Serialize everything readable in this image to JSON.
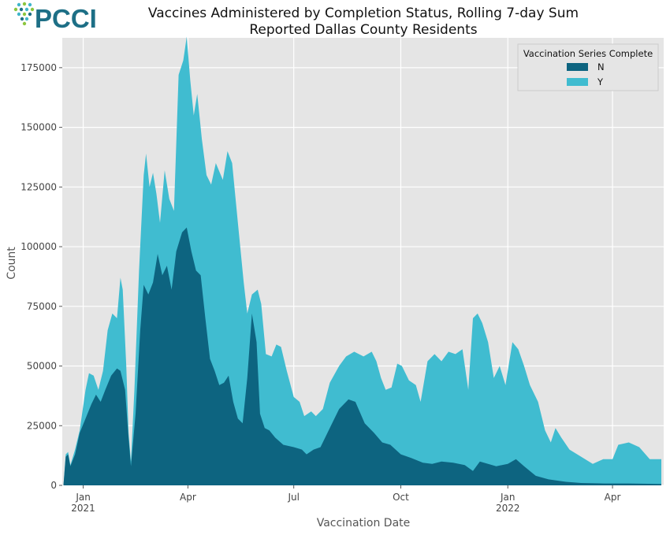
{
  "logo": {
    "text": "PCCI"
  },
  "chart_data": {
    "type": "area",
    "stacked": true,
    "title": "Vaccines Administered by Completion Status, Rolling 7-day Sum",
    "subtitle": "Reported Dallas County Residents",
    "xlabel": "Vaccination Date",
    "ylabel": "Count",
    "ylim": [
      0,
      187500
    ],
    "xlim": [
      "2020-12-14",
      "2022-05-15"
    ],
    "yticks": [
      0,
      25000,
      50000,
      75000,
      100000,
      125000,
      150000,
      175000
    ],
    "yticklabels": [
      "0",
      "25000",
      "50000",
      "75000",
      "100000",
      "125000",
      "150000",
      "175000"
    ],
    "xticks": [
      {
        "date": "2021-01-01",
        "label": "Jan",
        "year": "2021"
      },
      {
        "date": "2021-04-01",
        "label": "Apr",
        "year": ""
      },
      {
        "date": "2021-07-01",
        "label": "Jul",
        "year": ""
      },
      {
        "date": "2021-10-01",
        "label": "Oct",
        "year": ""
      },
      {
        "date": "2022-01-01",
        "label": "Jan",
        "year": "2022"
      },
      {
        "date": "2022-04-01",
        "label": "Apr",
        "year": ""
      }
    ],
    "grid": true,
    "legend": {
      "title": "Vaccination Series Complete",
      "position": "top-right"
    },
    "series": [
      {
        "name": "N",
        "color": "#0d6480",
        "points": [
          [
            "2020-12-15",
            0
          ],
          [
            "2020-12-17",
            12000
          ],
          [
            "2020-12-19",
            13000
          ],
          [
            "2020-12-21",
            8000
          ],
          [
            "2020-12-25",
            13000
          ],
          [
            "2020-12-29",
            22000
          ],
          [
            "2021-01-03",
            28000
          ],
          [
            "2021-01-08",
            34000
          ],
          [
            "2021-01-12",
            38000
          ],
          [
            "2021-01-16",
            35000
          ],
          [
            "2021-01-20",
            40000
          ],
          [
            "2021-01-25",
            46000
          ],
          [
            "2021-01-30",
            49000
          ],
          [
            "2021-02-02",
            48000
          ],
          [
            "2021-02-06",
            40000
          ],
          [
            "2021-02-09",
            20000
          ],
          [
            "2021-02-11",
            8000
          ],
          [
            "2021-02-15",
            30000
          ],
          [
            "2021-02-19",
            65000
          ],
          [
            "2021-02-22",
            84000
          ],
          [
            "2021-02-26",
            80000
          ],
          [
            "2021-03-02",
            85000
          ],
          [
            "2021-03-06",
            97000
          ],
          [
            "2021-03-10",
            88000
          ],
          [
            "2021-03-14",
            92000
          ],
          [
            "2021-03-18",
            82000
          ],
          [
            "2021-03-22",
            98000
          ],
          [
            "2021-03-27",
            106000
          ],
          [
            "2021-03-31",
            108000
          ],
          [
            "2021-04-04",
            98000
          ],
          [
            "2021-04-08",
            90000
          ],
          [
            "2021-04-12",
            88000
          ],
          [
            "2021-04-16",
            70000
          ],
          [
            "2021-04-20",
            53000
          ],
          [
            "2021-04-24",
            48000
          ],
          [
            "2021-04-28",
            42000
          ],
          [
            "2021-05-02",
            43000
          ],
          [
            "2021-05-06",
            46000
          ],
          [
            "2021-05-10",
            35000
          ],
          [
            "2021-05-14",
            28000
          ],
          [
            "2021-05-18",
            26000
          ],
          [
            "2021-05-22",
            45000
          ],
          [
            "2021-05-26",
            72000
          ],
          [
            "2021-05-30",
            60000
          ],
          [
            "2021-06-02",
            30000
          ],
          [
            "2021-06-06",
            24000
          ],
          [
            "2021-06-10",
            23000
          ],
          [
            "2021-06-15",
            20000
          ],
          [
            "2021-06-22",
            17000
          ],
          [
            "2021-07-01",
            16000
          ],
          [
            "2021-07-08",
            15000
          ],
          [
            "2021-07-12",
            13000
          ],
          [
            "2021-07-18",
            15000
          ],
          [
            "2021-07-24",
            16000
          ],
          [
            "2021-08-01",
            24000
          ],
          [
            "2021-08-09",
            32000
          ],
          [
            "2021-08-17",
            36000
          ],
          [
            "2021-08-23",
            35000
          ],
          [
            "2021-08-31",
            26000
          ],
          [
            "2021-09-08",
            22000
          ],
          [
            "2021-09-15",
            18000
          ],
          [
            "2021-09-22",
            17000
          ],
          [
            "2021-10-01",
            13000
          ],
          [
            "2021-10-10",
            11500
          ],
          [
            "2021-10-20",
            9500
          ],
          [
            "2021-10-28",
            9000
          ],
          [
            "2021-11-05",
            10000
          ],
          [
            "2021-11-15",
            9500
          ],
          [
            "2021-11-25",
            8500
          ],
          [
            "2021-12-02",
            6000
          ],
          [
            "2021-12-08",
            10000
          ],
          [
            "2021-12-15",
            9000
          ],
          [
            "2021-12-22",
            8000
          ],
          [
            "2022-01-01",
            9000
          ],
          [
            "2022-01-08",
            11000
          ],
          [
            "2022-01-15",
            8000
          ],
          [
            "2022-01-25",
            4000
          ],
          [
            "2022-02-05",
            2500
          ],
          [
            "2022-02-20",
            1500
          ],
          [
            "2022-03-05",
            1000
          ],
          [
            "2022-03-25",
            800
          ],
          [
            "2022-04-15",
            800
          ],
          [
            "2022-05-13",
            600
          ]
        ]
      },
      {
        "name": "Y",
        "color": "#40bcd0",
        "points": [
          [
            "2020-12-15",
            0
          ],
          [
            "2020-12-17",
            13000
          ],
          [
            "2020-12-19",
            14000
          ],
          [
            "2020-12-21",
            8500
          ],
          [
            "2020-12-25",
            15000
          ],
          [
            "2020-12-29",
            23000
          ],
          [
            "2021-01-03",
            40000
          ],
          [
            "2021-01-06",
            47000
          ],
          [
            "2021-01-10",
            46000
          ],
          [
            "2021-01-14",
            40000
          ],
          [
            "2021-01-18",
            48000
          ],
          [
            "2021-01-22",
            65000
          ],
          [
            "2021-01-26",
            72000
          ],
          [
            "2021-01-30",
            70000
          ],
          [
            "2021-02-02",
            87000
          ],
          [
            "2021-02-04",
            82000
          ],
          [
            "2021-02-07",
            50000
          ],
          [
            "2021-02-09",
            22000
          ],
          [
            "2021-02-11",
            10000
          ],
          [
            "2021-02-14",
            40000
          ],
          [
            "2021-02-18",
            90000
          ],
          [
            "2021-02-22",
            130000
          ],
          [
            "2021-02-24",
            139000
          ],
          [
            "2021-02-27",
            125000
          ],
          [
            "2021-03-02",
            131000
          ],
          [
            "2021-03-05",
            122000
          ],
          [
            "2021-03-08",
            110000
          ],
          [
            "2021-03-12",
            132000
          ],
          [
            "2021-03-16",
            120000
          ],
          [
            "2021-03-20",
            115000
          ],
          [
            "2021-03-24",
            172000
          ],
          [
            "2021-03-28",
            178000
          ],
          [
            "2021-03-31",
            188000
          ],
          [
            "2021-04-03",
            170000
          ],
          [
            "2021-04-06",
            155000
          ],
          [
            "2021-04-09",
            164000
          ],
          [
            "2021-04-13",
            145000
          ],
          [
            "2021-04-17",
            130000
          ],
          [
            "2021-04-21",
            126000
          ],
          [
            "2021-04-25",
            135000
          ],
          [
            "2021-05-01",
            128000
          ],
          [
            "2021-05-05",
            140000
          ],
          [
            "2021-05-09",
            135000
          ],
          [
            "2021-05-14",
            110000
          ],
          [
            "2021-05-19",
            85000
          ],
          [
            "2021-05-22",
            72000
          ],
          [
            "2021-05-26",
            80000
          ],
          [
            "2021-05-31",
            82000
          ],
          [
            "2021-06-03",
            76000
          ],
          [
            "2021-06-07",
            55000
          ],
          [
            "2021-06-12",
            54000
          ],
          [
            "2021-06-16",
            59000
          ],
          [
            "2021-06-20",
            58000
          ],
          [
            "2021-06-25",
            48000
          ],
          [
            "2021-07-01",
            37000
          ],
          [
            "2021-07-06",
            35000
          ],
          [
            "2021-07-10",
            29000
          ],
          [
            "2021-07-16",
            31000
          ],
          [
            "2021-07-20",
            29000
          ],
          [
            "2021-07-26",
            32000
          ],
          [
            "2021-08-01",
            43000
          ],
          [
            "2021-08-09",
            50000
          ],
          [
            "2021-08-15",
            54000
          ],
          [
            "2021-08-22",
            56000
          ],
          [
            "2021-08-30",
            54000
          ],
          [
            "2021-09-06",
            56000
          ],
          [
            "2021-09-10",
            52000
          ],
          [
            "2021-09-14",
            45000
          ],
          [
            "2021-09-18",
            40000
          ],
          [
            "2021-09-23",
            41000
          ],
          [
            "2021-09-28",
            51000
          ],
          [
            "2021-10-02",
            50000
          ],
          [
            "2021-10-08",
            44000
          ],
          [
            "2021-10-14",
            42000
          ],
          [
            "2021-10-18",
            35000
          ],
          [
            "2021-10-24",
            52000
          ],
          [
            "2021-10-30",
            55000
          ],
          [
            "2021-11-05",
            52000
          ],
          [
            "2021-11-11",
            56000
          ],
          [
            "2021-11-17",
            55000
          ],
          [
            "2021-11-23",
            57000
          ],
          [
            "2021-11-28",
            40000
          ],
          [
            "2021-12-02",
            70000
          ],
          [
            "2021-12-06",
            72000
          ],
          [
            "2021-12-10",
            68000
          ],
          [
            "2021-12-15",
            60000
          ],
          [
            "2021-12-20",
            45000
          ],
          [
            "2021-12-25",
            50000
          ],
          [
            "2021-12-30",
            42000
          ],
          [
            "2022-01-05",
            60000
          ],
          [
            "2022-01-10",
            57000
          ],
          [
            "2022-01-15",
            50000
          ],
          [
            "2022-01-20",
            42000
          ],
          [
            "2022-01-27",
            35000
          ],
          [
            "2022-02-02",
            23000
          ],
          [
            "2022-02-07",
            18000
          ],
          [
            "2022-02-11",
            24000
          ],
          [
            "2022-02-16",
            20000
          ],
          [
            "2022-02-23",
            15000
          ],
          [
            "2022-03-05",
            12000
          ],
          [
            "2022-03-15",
            9000
          ],
          [
            "2022-03-24",
            11000
          ],
          [
            "2022-04-01",
            11000
          ],
          [
            "2022-04-06",
            17000
          ],
          [
            "2022-04-15",
            18000
          ],
          [
            "2022-04-24",
            16000
          ],
          [
            "2022-05-03",
            11000
          ],
          [
            "2022-05-13",
            11000
          ]
        ]
      }
    ]
  }
}
